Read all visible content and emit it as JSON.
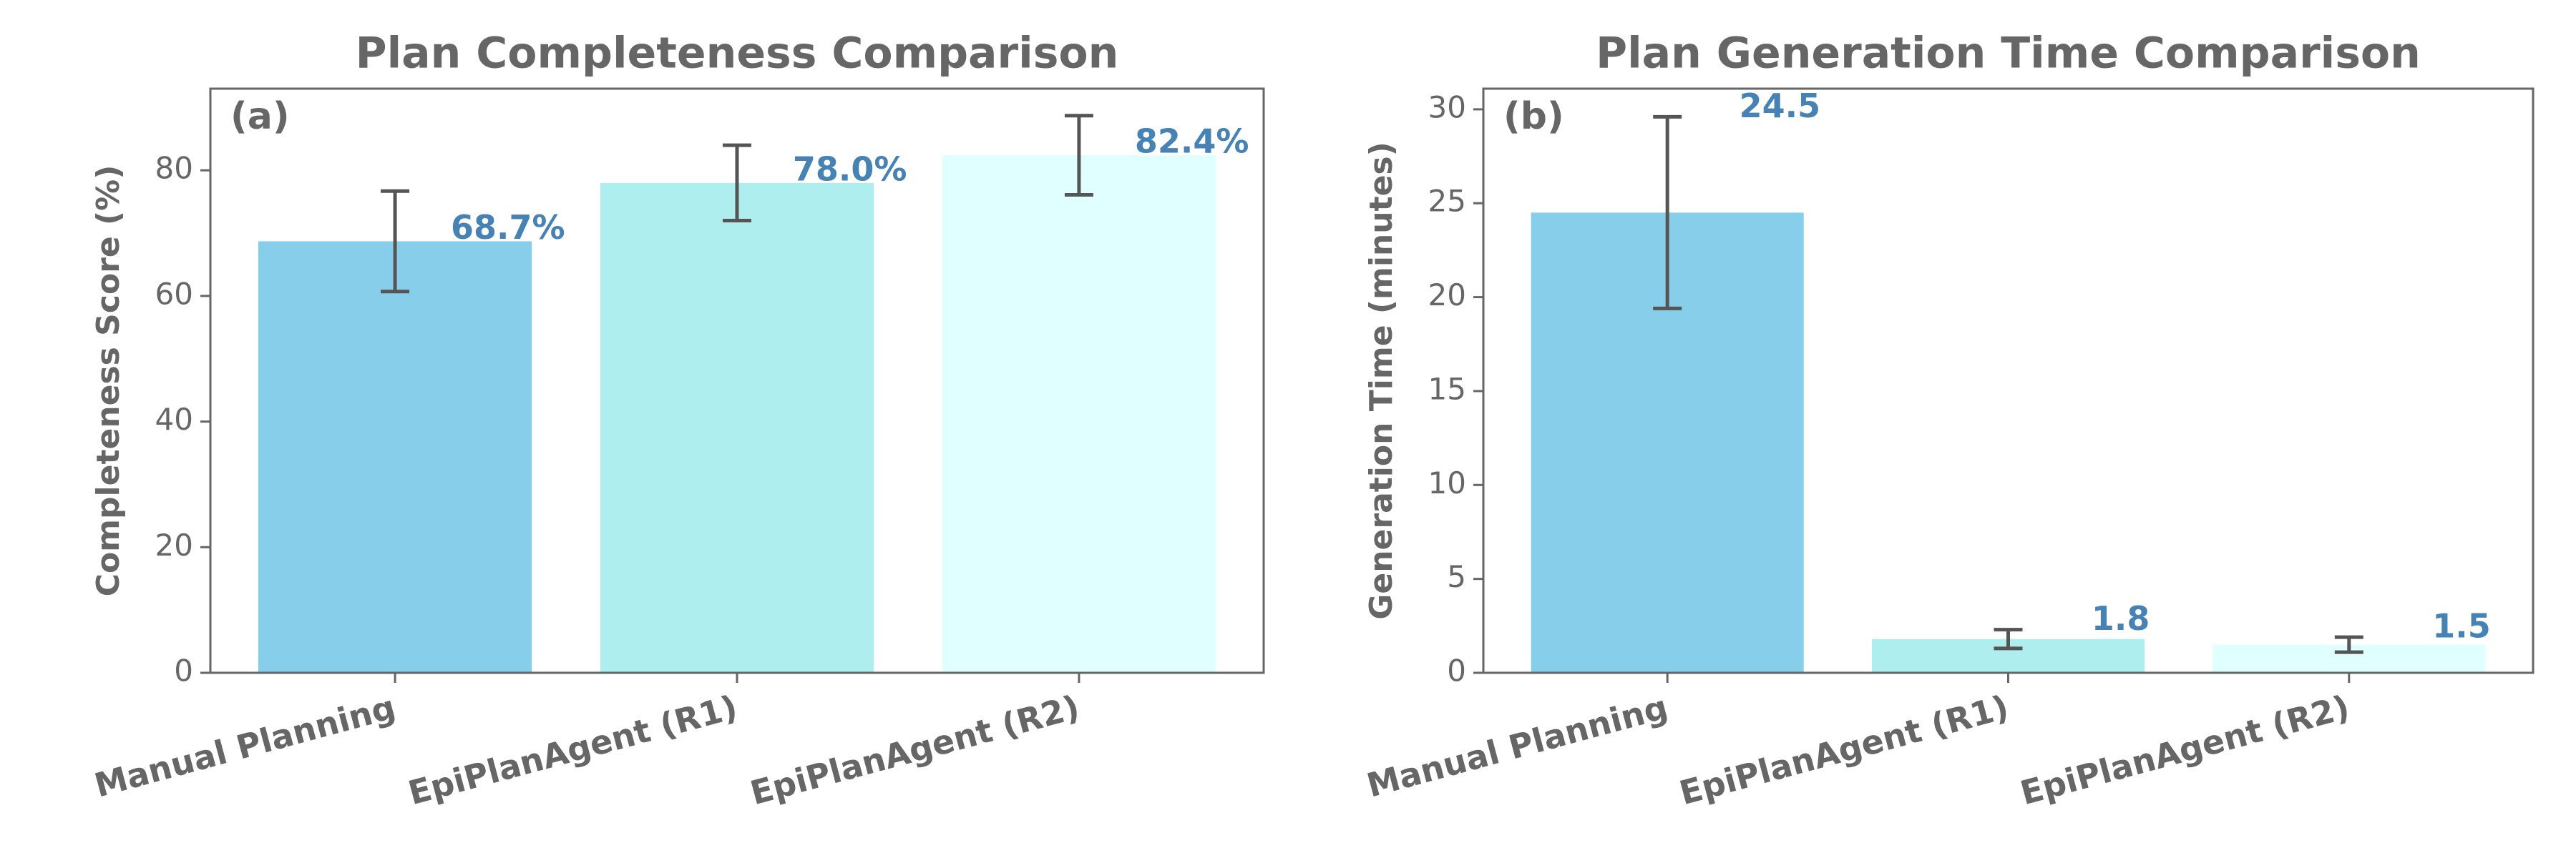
{
  "chart_data": [
    {
      "type": "bar",
      "title": "Plan Completeness Comparison",
      "panel_label": "(a)",
      "ylabel": "Completeness Score (%)",
      "categories": [
        "Manual Planning",
        "EpiPlanAgent (R1)",
        "EpiPlanAgent (R2)"
      ],
      "values": [
        68.7,
        78.0,
        82.4
      ],
      "value_labels": [
        "68.7%",
        "78.0%",
        "82.4%"
      ],
      "errors": [
        8.0,
        6.0,
        6.3
      ],
      "colors": [
        "#87ceeb",
        "#afeeee",
        "#e0ffff"
      ],
      "ylim": [
        0,
        93
      ],
      "yticks": [
        0,
        20,
        40,
        60,
        80
      ]
    },
    {
      "type": "bar",
      "title": "Plan Generation Time Comparison",
      "panel_label": "(b)",
      "ylabel": "Generation Time (minutes)",
      "categories": [
        "Manual Planning",
        "EpiPlanAgent (R1)",
        "EpiPlanAgent (R2)"
      ],
      "values": [
        24.5,
        1.8,
        1.5
      ],
      "errors": [
        5.1,
        0.5,
        0.4
      ],
      "colors": [
        "#87ceeb",
        "#afeeee",
        "#e0ffff"
      ],
      "ylim": [
        0,
        31.1
      ],
      "yticks": [
        0,
        5,
        10,
        15,
        20,
        25,
        30
      ]
    }
  ]
}
